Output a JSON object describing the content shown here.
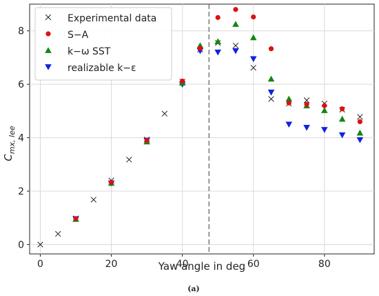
{
  "caption": "(a)",
  "chart_data": {
    "type": "scatter",
    "xlabel": "Yaw angle in deg",
    "ylabel": "C",
    "ylabel_sub": "mx, lee",
    "xlim": [
      -3,
      94
    ],
    "ylim": [
      -0.35,
      9.0
    ],
    "xticks": [
      0,
      20,
      40,
      60,
      80
    ],
    "yticks": [
      0,
      2,
      4,
      6,
      8
    ],
    "grid": true,
    "legend_position": "upper-left",
    "vline": {
      "x": 47.5,
      "style": "dashed"
    },
    "series": [
      {
        "name": "Experimental data",
        "marker": "x",
        "color": "#222222",
        "x": [
          0,
          5,
          10,
          15,
          20,
          25,
          30,
          35,
          40,
          45,
          50,
          55,
          60,
          65,
          70,
          75,
          80,
          85,
          90
        ],
        "y": [
          0.0,
          0.4,
          0.98,
          1.68,
          2.4,
          3.18,
          3.93,
          4.9,
          6.1,
          7.3,
          7.55,
          7.45,
          6.62,
          5.45,
          5.28,
          5.4,
          5.28,
          5.05,
          4.78
        ]
      },
      {
        "name": "S−A",
        "marker": "circle",
        "color": "#dd1111",
        "x": [
          10,
          20,
          30,
          40,
          45,
          50,
          55,
          60,
          65,
          70,
          75,
          80,
          85,
          90
        ],
        "y": [
          0.97,
          2.33,
          3.9,
          6.12,
          7.35,
          8.5,
          8.8,
          8.52,
          7.33,
          5.3,
          5.25,
          5.2,
          5.08,
          4.6
        ]
      },
      {
        "name": "k−ω SST",
        "marker": "triangle-up",
        "color": "#118811",
        "x": [
          10,
          20,
          30,
          40,
          45,
          50,
          55,
          60,
          65,
          70,
          75,
          80,
          85,
          90
        ],
        "y": [
          0.95,
          2.3,
          3.85,
          6.05,
          7.45,
          7.6,
          8.25,
          7.75,
          6.2,
          5.45,
          5.2,
          5.02,
          4.7,
          4.18
        ]
      },
      {
        "name": "realizable k−ε",
        "marker": "triangle-down",
        "color": "#1122dd",
        "x": [
          10,
          20,
          30,
          40,
          45,
          50,
          55,
          60,
          65,
          70,
          75,
          80,
          85,
          90
        ],
        "y": [
          0.96,
          2.3,
          3.9,
          6.0,
          7.25,
          7.2,
          7.25,
          6.95,
          5.7,
          4.5,
          4.38,
          4.3,
          4.1,
          3.92
        ]
      }
    ]
  }
}
